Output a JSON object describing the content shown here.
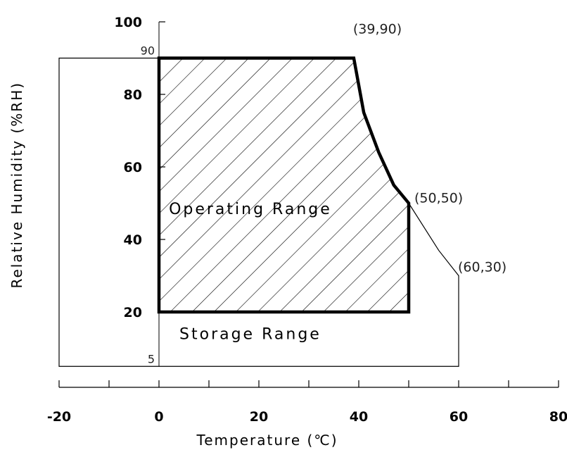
{
  "chart_data": {
    "type": "area",
    "xlabel": "Temperature (℃)",
    "ylabel": "Relative Humidity (%RH)",
    "xlim": [
      -20,
      80
    ],
    "ylim": [
      5,
      100
    ],
    "x_ticks": [
      -20,
      0,
      20,
      40,
      60,
      80
    ],
    "x_ticks_minor": [
      -10,
      10,
      30,
      50,
      70
    ],
    "y_ticks": [
      20,
      40,
      60,
      80,
      100
    ],
    "y_extra_labels": [
      90,
      5
    ],
    "grid": false,
    "series": [
      {
        "name": "Operating Range",
        "fill": "hatched",
        "x": [
          0,
          39,
          41,
          44,
          47,
          50,
          50,
          0
        ],
        "y": [
          90,
          90,
          75,
          64,
          55,
          50,
          20,
          20
        ]
      },
      {
        "name": "Storage Range",
        "fill": "none",
        "x": [
          -20,
          39,
          41,
          44,
          47,
          50,
          56,
          60,
          60,
          -20
        ],
        "y": [
          90,
          90,
          75,
          64,
          55,
          50,
          37,
          30,
          5,
          5
        ]
      }
    ],
    "annotations": [
      {
        "text": "(39,90)",
        "x": 39,
        "y": 90
      },
      {
        "text": "(50,50)",
        "x": 50,
        "y": 50
      },
      {
        "text": "(60,30)",
        "x": 60,
        "y": 30
      }
    ]
  }
}
